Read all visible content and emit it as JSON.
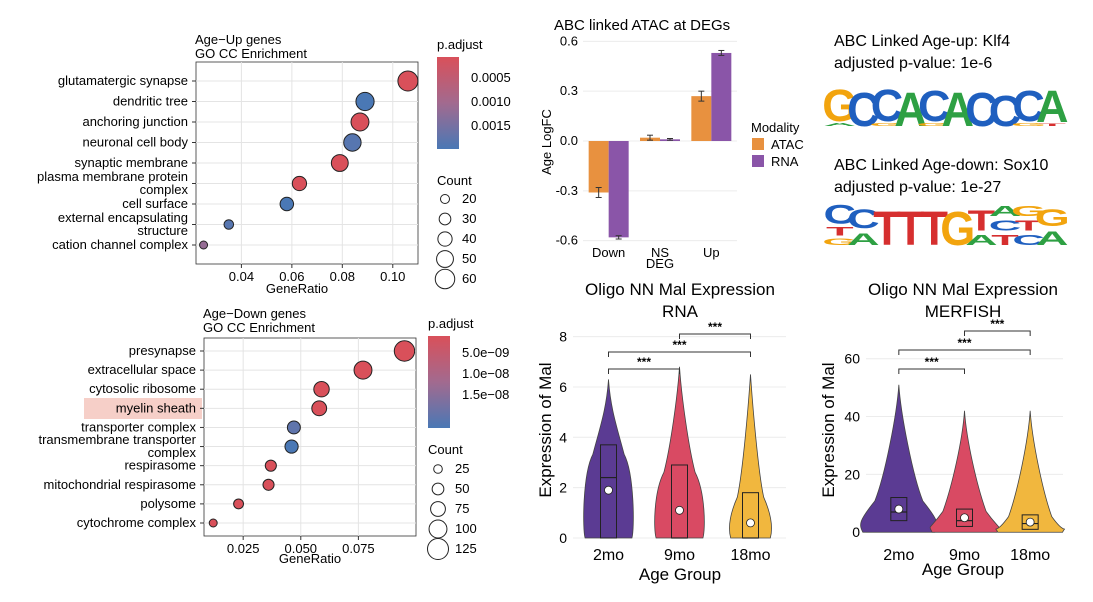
{
  "colors": {
    "padj_high": "#d9505a",
    "padj_mid": "#a26a8f",
    "padj_low": "#4a78b5",
    "atac": "#e8913f",
    "rna": "#8a55a8",
    "violin_2mo": "#5b3b93",
    "violin_9mo": "#d94a63",
    "violin_18mo": "#f1b73e",
    "highlight": "#f6cfc8"
  },
  "chart_data": [
    {
      "type": "scatter",
      "title": "Age−Up genes",
      "subtitle": "GO CC Enrichment",
      "xlabel": "GeneRatio",
      "xlim": [
        0.022,
        0.11
      ],
      "xticks": [
        "0.04",
        "0.06",
        "0.08",
        "0.10"
      ],
      "xtick_values": [
        0.04,
        0.06,
        0.08,
        0.1
      ],
      "categories": [
        "glutamatergic synapse",
        "dendritic tree",
        "anchoring junction",
        "neuronal cell body",
        "synaptic membrane",
        "plasma membrane protein complex",
        "cell surface",
        "external encapsulating structure",
        "cation channel complex"
      ],
      "category_lines": [
        [
          "glutamatergic synapse"
        ],
        [
          "dendritic tree"
        ],
        [
          "anchoring junction"
        ],
        [
          "neuronal cell body"
        ],
        [
          "synaptic membrane"
        ],
        [
          "plasma membrane protein",
          "complex"
        ],
        [
          "cell surface"
        ],
        [
          "external encapsulating",
          "structure"
        ],
        [
          "cation channel complex"
        ]
      ],
      "gene_ratio": [
        0.106,
        0.089,
        0.087,
        0.084,
        0.079,
        0.063,
        0.058,
        0.035,
        0.025
      ],
      "count": [
        62,
        55,
        54,
        52,
        50,
        40,
        37,
        22,
        16
      ],
      "p_adjust": [
        0.0003,
        0.0017,
        0.0003,
        0.0016,
        0.0003,
        0.0003,
        0.0017,
        0.0016,
        0.0011
      ],
      "color_legend_title": "p.adjust",
      "color_legend_labels": [
        "0.0005",
        "0.0010",
        "0.0015"
      ],
      "size_legend_title": "Count",
      "size_legend_labels": [
        "20",
        "30",
        "40",
        "50",
        "60"
      ],
      "legend": "right"
    },
    {
      "type": "scatter",
      "title": "Age−Down genes",
      "subtitle": "GO CC Enrichment",
      "xlabel": "GeneRatio",
      "xlim": [
        0.008,
        0.1
      ],
      "xticks": [
        "0.025",
        "0.050",
        "0.075"
      ],
      "xtick_values": [
        0.025,
        0.05,
        0.075
      ],
      "categories": [
        "presynapse",
        "extracellular space",
        "cytosolic ribosome",
        "myelin sheath",
        "transporter complex",
        "transmembrane transporter complex",
        "respirasome",
        "mitochondrial respirasome",
        "polysome",
        "cytochrome complex"
      ],
      "category_lines": [
        [
          "presynapse"
        ],
        [
          "extracellular space"
        ],
        [
          "cytosolic ribosome"
        ],
        [
          "myelin sheath"
        ],
        [
          "transporter complex"
        ],
        [
          "transmembrane transporter",
          "complex"
        ],
        [
          "respirasome"
        ],
        [
          "mitochondrial respirasome"
        ],
        [
          "polysome"
        ],
        [
          "cytochrome complex"
        ]
      ],
      "highlighted_category": "myelin sheath",
      "gene_ratio": [
        0.095,
        0.077,
        0.059,
        0.058,
        0.047,
        0.046,
        0.037,
        0.036,
        0.023,
        0.012
      ],
      "count": [
        120,
        100,
        80,
        75,
        60,
        62,
        45,
        45,
        35,
        20
      ],
      "p_adjust": [
        2e-09,
        2e-09,
        2e-09,
        2e-09,
        1.6e-08,
        1.8e-08,
        2e-09,
        2e-09,
        2e-09,
        2e-09
      ],
      "color_legend_title": "p.adjust",
      "color_legend_labels": [
        "5.0e−09",
        "1.0e−08",
        "1.5e−08"
      ],
      "size_legend_title": "Count",
      "size_legend_labels": [
        "25",
        "50",
        "75",
        "100",
        "125"
      ],
      "legend": "right"
    },
    {
      "type": "bar",
      "title": "ABC linked ATAC at DEGs",
      "xlabel": "DEG",
      "ylabel": "Age LogFC",
      "ylim": [
        -0.62,
        0.62
      ],
      "yticks": [
        "0.6",
        "0.3",
        "0.0",
        "-0.3",
        "-0.6"
      ],
      "ytick_values": [
        0.6,
        0.3,
        0.0,
        -0.3,
        -0.6
      ],
      "categories": [
        "Down",
        "NS",
        "Up"
      ],
      "series": [
        {
          "name": "ATAC",
          "values": [
            -0.31,
            0.02,
            0.27
          ],
          "error": [
            0.03,
            0.015,
            0.03
          ]
        },
        {
          "name": "RNA",
          "values": [
            -0.58,
            0.01,
            0.53
          ],
          "error": [
            0.01,
            0.005,
            0.015
          ]
        }
      ],
      "legend_title": "Modality",
      "legend": "right"
    },
    {
      "type": "violin",
      "title": "Oligo NN Mal Expression",
      "subtitle": "RNA",
      "xlabel": "Age Group",
      "ylabel": "Expression of Mal",
      "ylim": [
        0,
        8.5
      ],
      "yticks": [
        "0",
        "2",
        "4",
        "6",
        "8"
      ],
      "ytick_values": [
        0,
        2,
        4,
        6,
        8
      ],
      "categories": [
        "2mo",
        "9mo",
        "18mo"
      ],
      "max": [
        6.3,
        6.8,
        6.5
      ],
      "q1": [
        0,
        0,
        0
      ],
      "median": [
        2.4,
        0,
        0
      ],
      "q3": [
        3.7,
        2.9,
        1.8
      ],
      "mean": [
        1.9,
        1.1,
        0.6
      ],
      "significance": [
        {
          "from": "2mo",
          "to": "9mo",
          "label": "***"
        },
        {
          "from": "2mo",
          "to": "18mo",
          "label": "***"
        },
        {
          "from": "9mo",
          "to": "18mo",
          "label": "***"
        }
      ]
    },
    {
      "type": "violin",
      "title": "Oligo NN  Mal  Expression",
      "subtitle": "MERFISH",
      "xlabel": "Age Group",
      "ylabel": "Expression of  Mal",
      "ylim": [
        -2,
        72
      ],
      "yticks": [
        "0",
        "20",
        "40",
        "60"
      ],
      "ytick_values": [
        0,
        20,
        40,
        60
      ],
      "categories": [
        "2mo",
        "9mo",
        "18mo"
      ],
      "max": [
        51,
        42,
        42
      ],
      "q1": [
        4,
        2,
        1
      ],
      "median": [
        7,
        4,
        3
      ],
      "q3": [
        12,
        8,
        6
      ],
      "mean": [
        8,
        5,
        3.5
      ],
      "significance": [
        {
          "from": "2mo",
          "to": "9mo",
          "label": "***"
        },
        {
          "from": "2mo",
          "to": "18mo",
          "label": "***"
        },
        {
          "from": "9mo",
          "to": "18mo",
          "label": "***"
        }
      ]
    }
  ],
  "motifs": [
    {
      "title": "ABC Linked Age-up: Klf4",
      "pvalue": "adjusted p-value: 1e-6",
      "logo": "GCCACACCCA"
    },
    {
      "title": "ABC Linked Age-down: Sox10",
      "pvalue": "adjusted p-value: 1e-27",
      "logo": "CCTTTGTTCG"
    }
  ]
}
